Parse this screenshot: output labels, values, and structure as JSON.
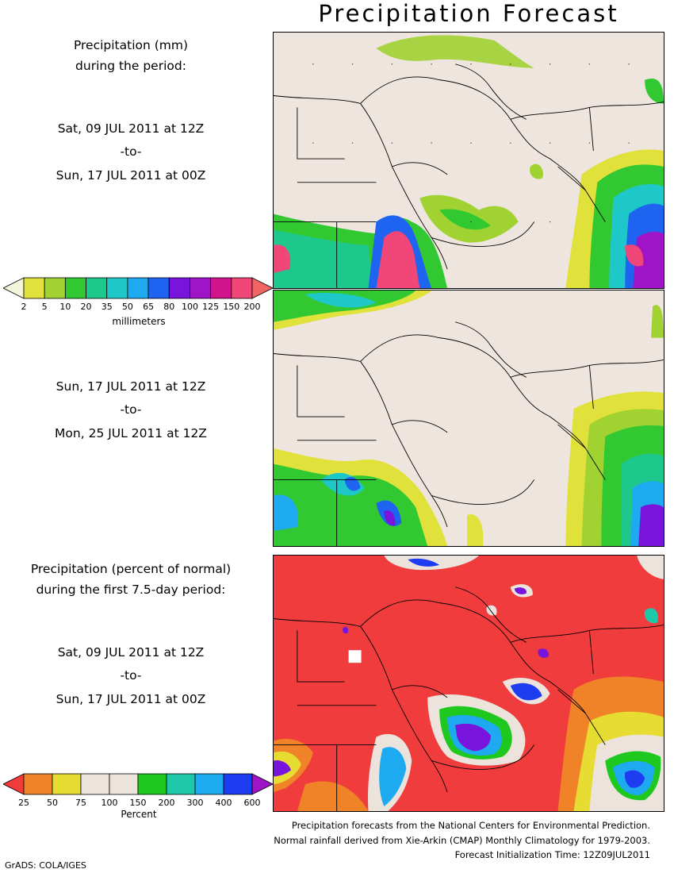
{
  "title": "Precipitation Forecast",
  "panel1": {
    "header_line1": "Precipitation (mm)",
    "header_line2": "during the period:",
    "start": "Sat, 09 JUL 2011 at 12Z",
    "to": "-to-",
    "end": "Sun, 17 JUL 2011 at 00Z"
  },
  "panel2": {
    "start": "Sun, 17 JUL 2011 at 12Z",
    "to": "-to-",
    "end": "Mon, 25 JUL 2011 at 12Z"
  },
  "panel3": {
    "header_line1": "Precipitation (percent of normal)",
    "header_line2": "during the first 7.5-day period:",
    "start": "Sat, 09 JUL 2011 at 12Z",
    "to": "-to-",
    "end": "Sun, 17 JUL 2011 at 00Z"
  },
  "colorbar_mm": {
    "unit": "millimeters",
    "ticks": [
      "2",
      "5",
      "10",
      "20",
      "35",
      "50",
      "65",
      "80",
      "100",
      "125",
      "150",
      "200"
    ],
    "colors": [
      "#f5f5dc",
      "#e1e13c",
      "#a0d232",
      "#32c832",
      "#1ec88c",
      "#1ec8c8",
      "#1eaaf0",
      "#1e64f0",
      "#7814dc",
      "#a014c8",
      "#d2148c",
      "#f04678",
      "#f06464"
    ]
  },
  "colorbar_pct": {
    "unit": "Percent",
    "ticks": [
      "25",
      "50",
      "75",
      "100",
      "150",
      "200",
      "300",
      "400",
      "600"
    ],
    "colors": [
      "#f03c3c",
      "#f08228",
      "#e6dc32",
      "#ebe3dc",
      "#ebe3dc",
      "#1ec81e",
      "#1ec8aa",
      "#1eaaf0",
      "#1e3cf0",
      "#a014c8"
    ]
  },
  "footer": {
    "line1": "Precipitation forecasts from the National Centers for Environmental Prediction.",
    "line2": "Normal rainfall derived from Xie-Arkin (CMAP) Monthly Climatology for 1979-2003.",
    "line3": "Forecast Initialization Time: 12Z09JUL2011"
  },
  "credit": "GrADS: COLA/IGES"
}
